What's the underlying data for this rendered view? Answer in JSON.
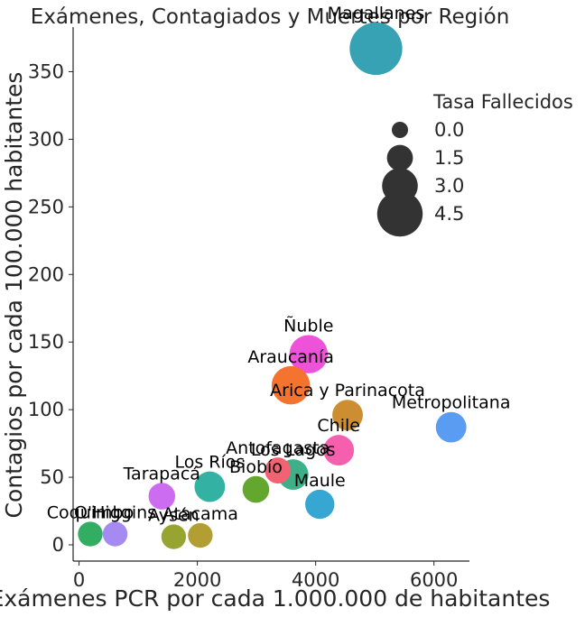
{
  "chart_data": {
    "type": "scatter",
    "title": "Exámenes, Contagiados y Muertes por Región",
    "xlabel": "Exámenes PCR por cada 1.000.000 de habitantes",
    "ylabel": "Contagios por cada 100.000 habitantes",
    "xlim": [
      -100,
      6600
    ],
    "ylim": [
      -12,
      383
    ],
    "xticks": [
      0,
      2000,
      4000,
      6000
    ],
    "yticks": [
      0,
      50,
      100,
      150,
      200,
      250,
      300,
      350
    ],
    "size_legend": {
      "title": "Tasa Fallecidos",
      "entries": [
        {
          "label": "0.0",
          "value": 0.0
        },
        {
          "label": "1.5",
          "value": 1.5
        },
        {
          "label": "3.0",
          "value": 3.0
        },
        {
          "label": "4.5",
          "value": 4.5
        }
      ],
      "color": "#333333",
      "placement": "upper-right"
    },
    "points": [
      {
        "label": "Magallanes",
        "x": 5020,
        "y": 367,
        "size": 5.6,
        "color": "#36a2b4"
      },
      {
        "label": "Ñuble",
        "x": 3880,
        "y": 141,
        "size": 3.4,
        "color": "#ee52d9"
      },
      {
        "label": "Araucanía",
        "x": 3580,
        "y": 118,
        "size": 3.4,
        "color": "#f4732f"
      },
      {
        "label": "Arica y Parinacota",
        "x": 4540,
        "y": 96,
        "size": 2.2,
        "color": "#cd8d31"
      },
      {
        "label": "Metropolitana",
        "x": 6290,
        "y": 87,
        "size": 2.2,
        "color": "#5b9cf3"
      },
      {
        "label": "Chile",
        "x": 4390,
        "y": 70,
        "size": 2.2,
        "color": "#f65fae"
      },
      {
        "label": "Antofagasta",
        "x": 3360,
        "y": 55,
        "size": 1.5,
        "color": "#f36272"
      },
      {
        "label": "Los Lagos",
        "x": 3620,
        "y": 52,
        "size": 2.2,
        "color": "#3db08a"
      },
      {
        "label": "Los Ríos",
        "x": 2210,
        "y": 43,
        "size": 2.2,
        "color": "#33b1a3"
      },
      {
        "label": "Biobío",
        "x": 2990,
        "y": 41,
        "size": 1.6,
        "color": "#63a72f"
      },
      {
        "label": "Tarapacá",
        "x": 1400,
        "y": 36,
        "size": 1.6,
        "color": "#cc6cf0"
      },
      {
        "label": "Maule",
        "x": 4070,
        "y": 30,
        "size": 2.0,
        "color": "#36a7d3"
      },
      {
        "label": "Coquimbo",
        "x": 190,
        "y": 8,
        "size": 1.3,
        "color": "#33ad61"
      },
      {
        "label": "O'Higgins",
        "x": 610,
        "y": 8,
        "size": 1.3,
        "color": "#a58af1"
      },
      {
        "label": "Aysén",
        "x": 1600,
        "y": 6,
        "size": 1.3,
        "color": "#97a431"
      },
      {
        "label": "Atacama",
        "x": 2050,
        "y": 7,
        "size": 1.3,
        "color": "#b29e33"
      }
    ]
  }
}
